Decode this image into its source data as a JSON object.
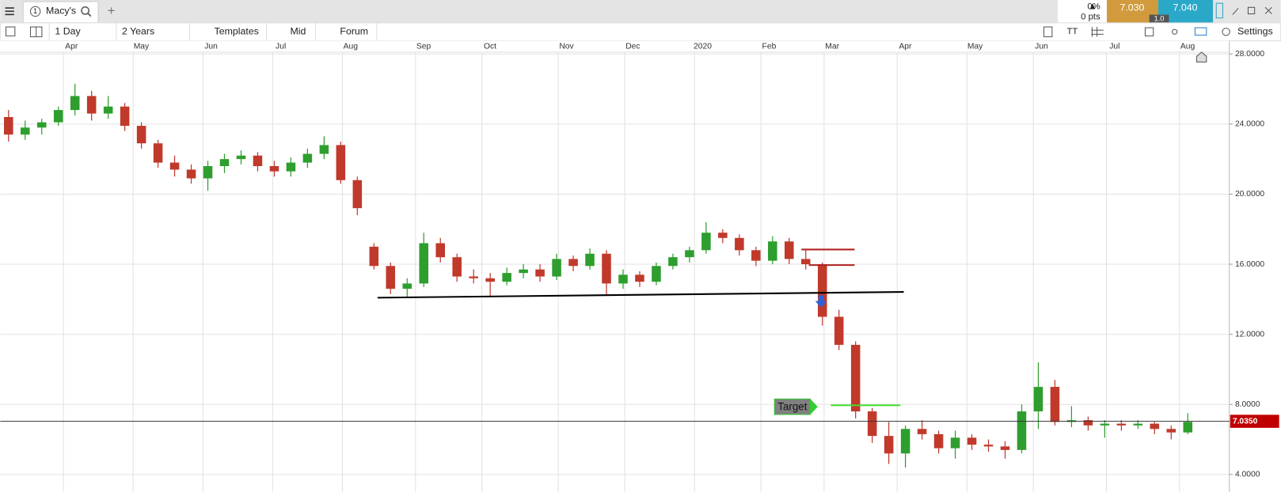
{
  "ui": {
    "tab_number": "1",
    "tab_title": "Macy's",
    "change_pct": "0%",
    "change_pts": "0 pts",
    "sell": "7.030",
    "buy": "7.040",
    "spread": "1.0",
    "toolbar": [
      "1 Day",
      "2 Years",
      "Templates",
      "Mid",
      "Forum"
    ],
    "settings": "Settings"
  },
  "chart_data": {
    "type": "candlestick",
    "xlim": [
      0,
      370
    ],
    "ylim": [
      3.0,
      28.1
    ],
    "xticks": [
      {
        "value": 19,
        "label": "Apr"
      },
      {
        "value": 40,
        "label": "May"
      },
      {
        "value": 61,
        "label": "Jun"
      },
      {
        "value": 82,
        "label": "Jul"
      },
      {
        "value": 103,
        "label": "Aug"
      },
      {
        "value": 125,
        "label": "Sep"
      },
      {
        "value": 145,
        "label": "Oct"
      },
      {
        "value": 168,
        "label": "Nov"
      },
      {
        "value": 188,
        "label": "Dec"
      },
      {
        "value": 209,
        "label": "2020"
      },
      {
        "value": 229,
        "label": "Feb"
      },
      {
        "value": 248,
        "label": "Mar"
      },
      {
        "value": 270,
        "label": "Apr"
      },
      {
        "value": 291,
        "label": "May"
      },
      {
        "value": 311,
        "label": "Jun"
      },
      {
        "value": 333,
        "label": "Jul"
      },
      {
        "value": 355,
        "label": "Aug"
      }
    ],
    "yticks": [
      {
        "value": 4,
        "label": "4.0000"
      },
      {
        "value": 8,
        "label": "8.0000"
      },
      {
        "value": 12,
        "label": "12.0000"
      },
      {
        "value": 16,
        "label": "16.0000"
      },
      {
        "value": 20,
        "label": "20.0000"
      },
      {
        "value": 24,
        "label": "24.0000"
      },
      {
        "value": 28,
        "label": "28.0000"
      }
    ],
    "grid": true,
    "up_color": "#2e9e2e",
    "down_color": "#c0392b",
    "x": [
      2.5,
      7.5,
      12.5,
      17.5,
      22.5,
      27.5,
      32.5,
      37.5,
      42.5,
      47.5,
      52.5,
      57.5,
      62.5,
      67.5,
      72.5,
      77.5,
      82.5,
      87.5,
      92.5,
      97.5,
      102.5,
      107.5,
      112.5,
      117.5,
      122.5,
      127.5,
      132.5,
      137.5,
      142.5,
      147.5,
      152.5,
      157.5,
      162.5,
      167.5,
      172.5,
      177.5,
      182.5,
      187.5,
      192.5,
      197.5,
      202.5,
      207.5,
      212.5,
      217.5,
      222.5,
      227.5,
      232.5,
      237.5,
      242.5,
      247.5,
      252.5,
      257.5,
      262.5,
      267.5,
      272.5,
      277.5,
      282.5,
      287.5,
      292.5,
      297.5,
      302.5,
      307.5,
      312.5,
      317.5,
      322.5,
      327.5,
      332.5,
      337.5,
      342.5,
      347.5,
      352.5,
      357.5
    ],
    "open": [
      24.4,
      23.4,
      23.8,
      24.1,
      24.8,
      25.6,
      24.6,
      25.0,
      23.9,
      22.9,
      21.8,
      21.4,
      20.9,
      21.6,
      22.0,
      22.2,
      21.6,
      21.3,
      21.8,
      22.3,
      22.8,
      20.8,
      17.0,
      15.9,
      14.6,
      14.9,
      17.2,
      16.4,
      15.3,
      15.2,
      15.0,
      15.5,
      15.7,
      15.3,
      16.3,
      15.9,
      16.6,
      14.9,
      15.4,
      15.0,
      15.9,
      16.4,
      16.8,
      17.8,
      17.5,
      16.8,
      16.2,
      17.3,
      16.3,
      16.0,
      13.0,
      11.4,
      7.6,
      6.2,
      5.2,
      6.6,
      6.3,
      5.5,
      6.1,
      5.7,
      5.6,
      5.4,
      7.6,
      9.0,
      7.0,
      7.1,
      6.8,
      6.9,
      6.8,
      6.9,
      6.6,
      6.4
    ],
    "high": [
      24.8,
      24.2,
      24.3,
      25.0,
      26.3,
      25.9,
      25.6,
      25.2,
      24.1,
      23.1,
      22.2,
      21.7,
      21.9,
      22.3,
      22.5,
      22.4,
      21.9,
      22.1,
      22.6,
      23.3,
      23.0,
      21.0,
      17.2,
      16.1,
      15.2,
      17.8,
      17.5,
      16.6,
      15.7,
      15.5,
      15.8,
      16.0,
      16.0,
      16.6,
      16.5,
      16.9,
      16.8,
      15.7,
      15.6,
      16.1,
      16.6,
      17.0,
      18.4,
      18.0,
      17.7,
      17.0,
      17.6,
      17.5,
      16.8,
      16.1,
      13.4,
      11.6,
      7.8,
      7.0,
      6.8,
      7.1,
      6.5,
      6.5,
      6.3,
      6.0,
      5.9,
      8.0,
      10.4,
      9.4,
      7.9,
      7.3,
      7.1,
      7.1,
      7.1,
      7.0,
      6.8,
      7.5
    ],
    "low": [
      23.0,
      23.1,
      23.4,
      23.9,
      24.5,
      24.2,
      24.3,
      23.6,
      22.6,
      21.5,
      21.0,
      20.6,
      20.2,
      21.2,
      21.7,
      21.3,
      21.0,
      21.0,
      21.5,
      22.0,
      20.6,
      18.8,
      15.7,
      14.3,
      14.1,
      14.7,
      16.1,
      15.0,
      14.9,
      14.2,
      14.8,
      15.2,
      15.0,
      15.1,
      15.6,
      15.7,
      14.2,
      14.6,
      14.7,
      14.8,
      15.7,
      16.1,
      16.6,
      17.2,
      16.5,
      15.9,
      16.0,
      16.0,
      15.7,
      12.5,
      11.1,
      7.2,
      5.8,
      4.6,
      4.4,
      6.0,
      5.2,
      4.9,
      5.4,
      5.3,
      4.9,
      5.2,
      6.6,
      6.8,
      6.7,
      6.5,
      6.1,
      6.5,
      6.6,
      6.3,
      6.0,
      6.3
    ],
    "close": [
      23.4,
      23.8,
      24.1,
      24.8,
      25.6,
      24.6,
      25.0,
      23.9,
      22.9,
      21.8,
      21.4,
      20.9,
      21.6,
      22.0,
      22.2,
      21.6,
      21.3,
      21.8,
      22.3,
      22.8,
      20.8,
      19.2,
      15.9,
      14.6,
      14.9,
      17.2,
      16.4,
      15.3,
      15.2,
      15.0,
      15.5,
      15.7,
      15.3,
      16.3,
      15.9,
      16.6,
      14.9,
      15.4,
      15.0,
      15.9,
      16.4,
      16.8,
      17.8,
      17.5,
      16.8,
      16.2,
      17.3,
      16.3,
      16.0,
      13.0,
      11.4,
      7.6,
      6.2,
      5.2,
      6.6,
      6.3,
      5.5,
      6.1,
      5.7,
      5.6,
      5.4,
      7.6,
      9.0,
      7.0,
      7.1,
      6.8,
      6.9,
      6.8,
      6.9,
      6.6,
      6.4,
      7.0
    ],
    "last_price": {
      "value": 7.035,
      "label": "7.0350",
      "color": "#c00000"
    },
    "trend_lines": [
      {
        "x": [
          113.6,
          272
        ],
        "y": [
          14.09,
          14.42
        ],
        "color": "#000000"
      },
      {
        "x": [
          241.2,
          257.2
        ],
        "y": [
          16.84,
          16.84
        ],
        "color": "#b22222"
      },
      {
        "x": [
          243.4,
          257.2
        ],
        "y": [
          15.95,
          15.95
        ],
        "color": "#b22222"
      },
      {
        "x": [
          250,
          271
        ],
        "y": [
          7.95,
          7.95
        ],
        "color": "#44dd33"
      }
    ],
    "annotation": "Target"
  }
}
